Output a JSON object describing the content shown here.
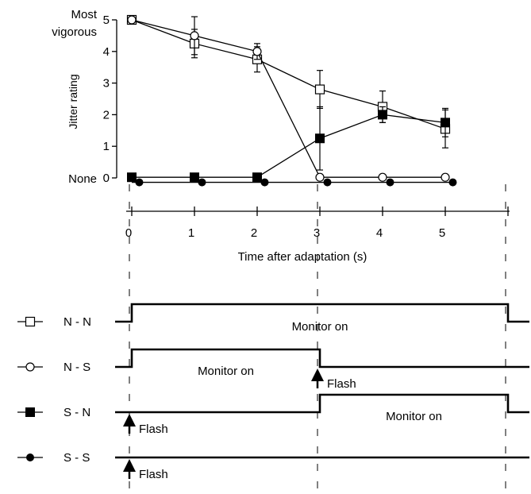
{
  "chart_data": {
    "type": "line",
    "xlabel": "Time after adaptation (s)",
    "ylabel": "Jitter rating",
    "xlim": [
      0,
      5
    ],
    "ylim": [
      0,
      5
    ],
    "x_ticks": [
      "0",
      "1",
      "2",
      "3",
      "4",
      "5"
    ],
    "y_ticks": [
      "0",
      "1",
      "2",
      "3",
      "4",
      "5"
    ],
    "y_tick_labels_extra": {
      "top_line1": "Most",
      "top_line2": "vigorous",
      "bottom": "None"
    },
    "grid": false,
    "series": [
      {
        "name": "N - N",
        "marker": "open-square",
        "x": [
          0,
          1,
          2,
          3,
          4,
          5
        ],
        "y": [
          5.0,
          4.25,
          3.75,
          2.8,
          2.25,
          1.55
        ],
        "err": [
          0,
          0.45,
          0.4,
          0.6,
          0.5,
          0.6
        ]
      },
      {
        "name": "N - S",
        "marker": "open-circle",
        "x": [
          0,
          1,
          2,
          3,
          4,
          5
        ],
        "y": [
          5.0,
          4.5,
          4.0,
          0.02,
          0.02,
          0.02
        ],
        "err": [
          0,
          0.6,
          0.25,
          0,
          0,
          0
        ]
      },
      {
        "name": "S - N",
        "marker": "filled-square",
        "x": [
          0,
          1,
          2,
          3,
          4,
          5
        ],
        "y": [
          0.02,
          0.02,
          0.02,
          1.25,
          2.0,
          1.75
        ],
        "err": [
          0,
          0,
          0,
          1.0,
          0.25,
          0.45
        ]
      },
      {
        "name": "S - S",
        "marker": "filled-circle",
        "x": [
          0.12,
          1.12,
          2.12,
          3.12,
          4.12,
          5.12
        ],
        "y": [
          -0.14,
          -0.14,
          -0.14,
          -0.14,
          -0.14,
          -0.14
        ],
        "err": [
          0,
          0,
          0,
          0,
          0,
          0
        ]
      }
    ]
  },
  "timeline": {
    "rows": [
      {
        "label": "N - N",
        "marker": "open-square",
        "on_start": 0,
        "on_end": 6,
        "flash_at": null,
        "monitor_label": "Monitor on",
        "flash_label": ""
      },
      {
        "label": "N - S",
        "marker": "open-circle",
        "on_start": 0,
        "on_end": 3,
        "flash_at": 3,
        "monitor_label": "Monitor on",
        "flash_label": "Flash"
      },
      {
        "label": "S - N",
        "marker": "filled-square",
        "on_start": 3,
        "on_end": 6,
        "flash_at": 0,
        "monitor_label": "Monitor on",
        "flash_label": "Flash"
      },
      {
        "label": "S - S",
        "marker": "filled-circle",
        "on_start": null,
        "on_end": null,
        "flash_at": 0,
        "monitor_label": "",
        "flash_label": "Flash"
      }
    ]
  }
}
